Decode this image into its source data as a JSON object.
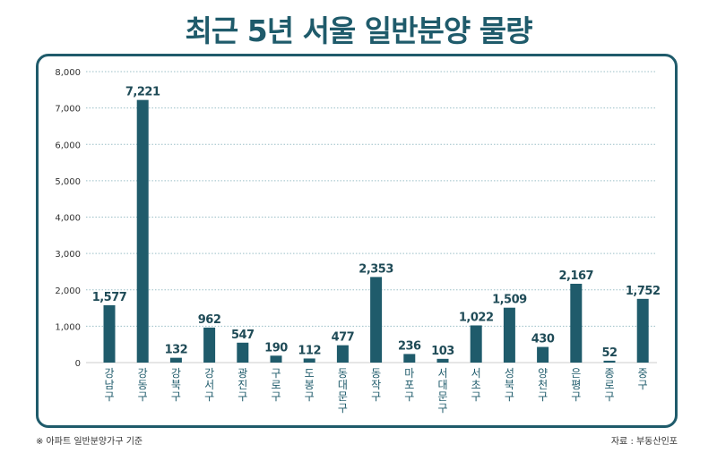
{
  "title": "최근 5년 서울 일반분양 물량",
  "footnote": "※ 아파트 일반분양가구 기준",
  "source": "자료 : 부동산인포",
  "colors": {
    "bar": "#1f5b6b",
    "accent": "#1f5b6b",
    "grid": "#9bbfc7"
  },
  "chart_data": {
    "type": "bar",
    "title": "최근 5년 서울 일반분양 물량",
    "xlabel": "",
    "ylabel": "",
    "ylim": [
      0,
      8000
    ],
    "yticks": [
      "0",
      "1,000",
      "2,000",
      "3,000",
      "4,000",
      "5,000",
      "6,000",
      "7,000",
      "8,000"
    ],
    "grid": true,
    "categories": [
      "강남구",
      "강동구",
      "강북구",
      "강서구",
      "광진구",
      "구로구",
      "도봉구",
      "동대문구",
      "동작구",
      "마포구",
      "서대문구",
      "서초구",
      "성북구",
      "양천구",
      "은평구",
      "종로구",
      "중구"
    ],
    "values": [
      1577,
      7221,
      132,
      962,
      547,
      190,
      112,
      477,
      2353,
      236,
      103,
      1022,
      1509,
      430,
      2167,
      52,
      1752
    ],
    "value_labels": [
      "1,577",
      "7,221",
      "132",
      "962",
      "547",
      "190",
      "112",
      "477",
      "2,353",
      "236",
      "103",
      "1,022",
      "1,509",
      "430",
      "2,167",
      "52",
      "1,752"
    ]
  }
}
